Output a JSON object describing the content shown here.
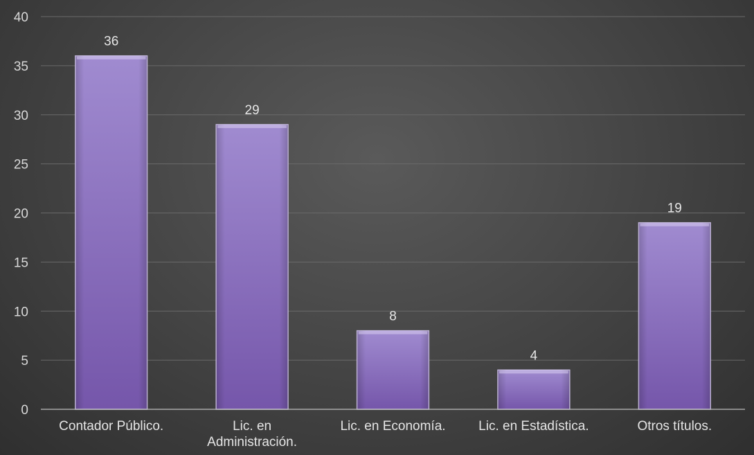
{
  "chart_data": {
    "type": "bar",
    "title": "",
    "xlabel": "",
    "ylabel": "",
    "categories": [
      "Contador Público.",
      "Lic. en Administración.",
      "Lic. en Economía.",
      "Lic. en Estadística.",
      "Otros títulos."
    ],
    "category_lines": [
      [
        "Contador Público."
      ],
      [
        "Lic. en",
        "Administración."
      ],
      [
        "Lic. en Economía."
      ],
      [
        "Lic. en Estadística."
      ],
      [
        "Otros títulos."
      ]
    ],
    "values": [
      36,
      29,
      8,
      4,
      19
    ],
    "ylim": [
      0,
      40
    ],
    "yticks": [
      0,
      5,
      10,
      15,
      20,
      25,
      30,
      35,
      40
    ],
    "grid": true,
    "legend": "none",
    "colors": {
      "bar_top": "#a08bd0",
      "bar_bottom": "#7556aa",
      "bar_edge": "#cfc2ea",
      "background": "#474747"
    }
  }
}
